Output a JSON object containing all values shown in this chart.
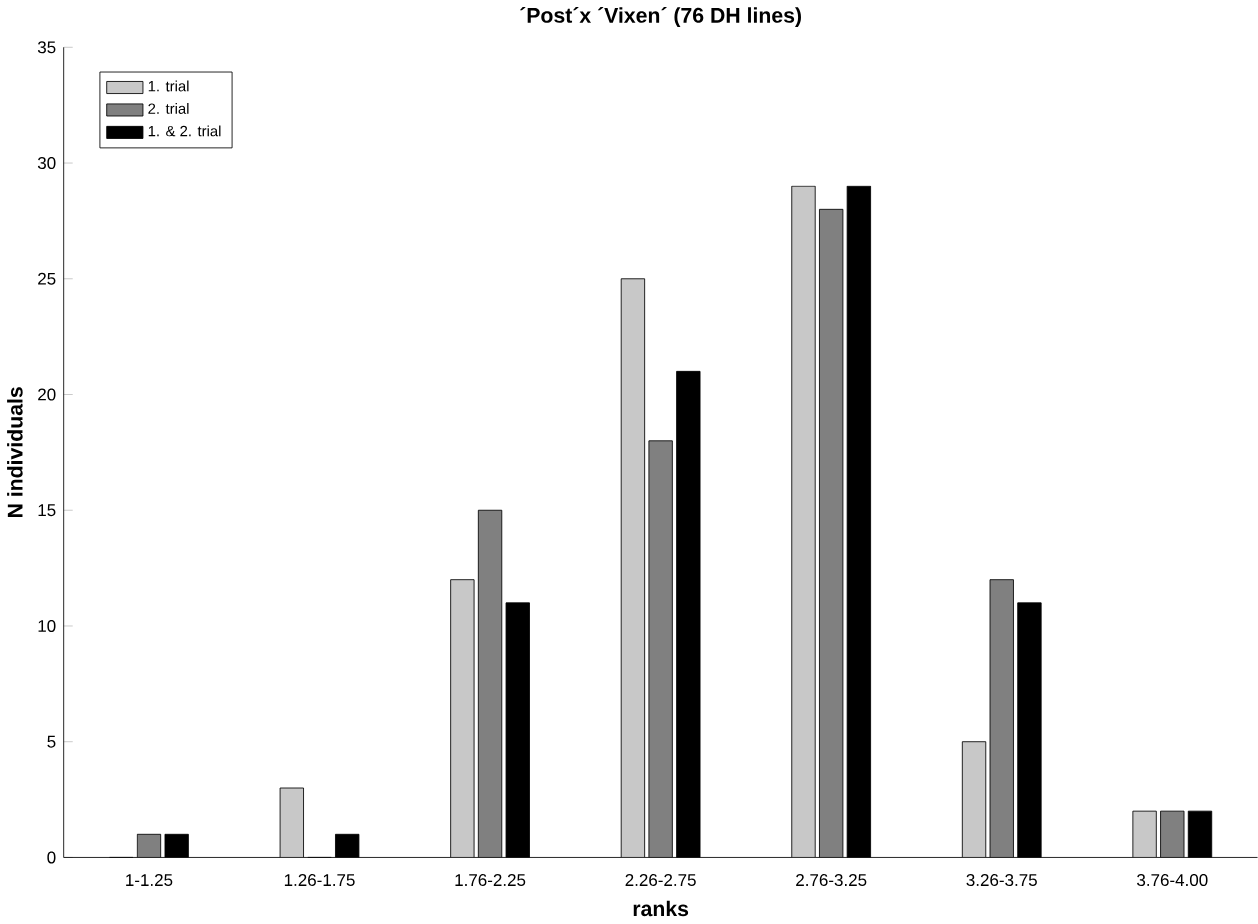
{
  "chart_data": {
    "type": "bar",
    "title": "´Post´x ´Vixen´ (76 DH lines)",
    "xlabel": "ranks",
    "ylabel": "N individuals",
    "categories": [
      "1-1.25",
      "1.26-1.75",
      "1.76-2.25",
      "2.26-2.75",
      "2.76-3.25",
      "3.26-3.75",
      "3.76-4.00"
    ],
    "series": [
      {
        "name": "1. trial",
        "color": "#c8c8c8",
        "values": [
          0,
          3,
          12,
          25,
          29,
          5,
          2
        ]
      },
      {
        "name": "2. trial",
        "color": "#808080",
        "values": [
          1,
          0,
          15,
          18,
          28,
          12,
          2
        ]
      },
      {
        "name": "1. & 2. trial",
        "color": "#000000",
        "values": [
          1,
          1,
          11,
          21,
          29,
          11,
          2
        ]
      }
    ],
    "ylim": [
      0,
      35
    ],
    "yticks": [
      0,
      5,
      10,
      15,
      20,
      25,
      30,
      35
    ],
    "grid": false,
    "legend": "top left"
  }
}
